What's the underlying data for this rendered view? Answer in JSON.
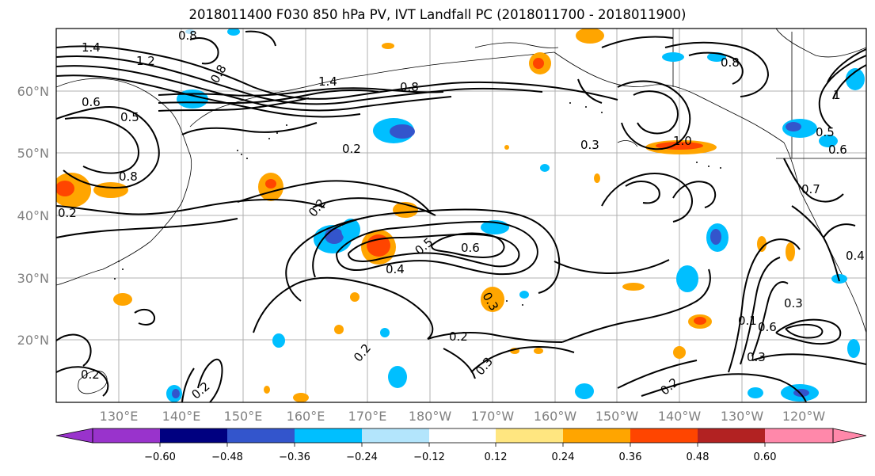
{
  "title": "2018011400 F030 850 hPa PV, IVT Landfall PC (2018011700 - 2018011900)",
  "lat_labels": [
    "60°N",
    "50°N",
    "40°N",
    "30°N",
    "20°N"
  ],
  "lon_labels": [
    "130°E",
    "140°E",
    "150°E",
    "160°E",
    "170°E",
    "180°W",
    "170°W",
    "160°W",
    "150°W",
    "140°W",
    "130°W",
    "120°W"
  ],
  "colorbar": {
    "ticks": [
      "−0.60",
      "−0.48",
      "−0.36",
      "−0.24",
      "−0.12",
      "0.12",
      "0.24",
      "0.36",
      "0.48",
      "0.60"
    ],
    "colors": [
      "#9933cc",
      "#000080",
      "#3355cc",
      "#00bfff",
      "#b3e5fc",
      "#ffffff",
      "#ffe680",
      "#ffa500",
      "#ff4500",
      "#b22222",
      "#ff88aa"
    ]
  },
  "contour_labels": [
    "1.4",
    "1.2",
    "0.8",
    "0.6",
    "0.5",
    "0.8",
    "0.8",
    "1.4",
    "0.8",
    "0.2",
    "0.3",
    "1.0",
    "0.8",
    "0.4",
    "0.5",
    "0.2",
    "0.5",
    "0.6",
    "0.4",
    "0.3",
    "0.2",
    "0.2",
    "0.3",
    "0.2",
    "0.2",
    "0.3",
    "0.6",
    "0.1",
    "0.3",
    "0.2",
    "0.2",
    "0.7",
    "0.6",
    "1"
  ]
}
